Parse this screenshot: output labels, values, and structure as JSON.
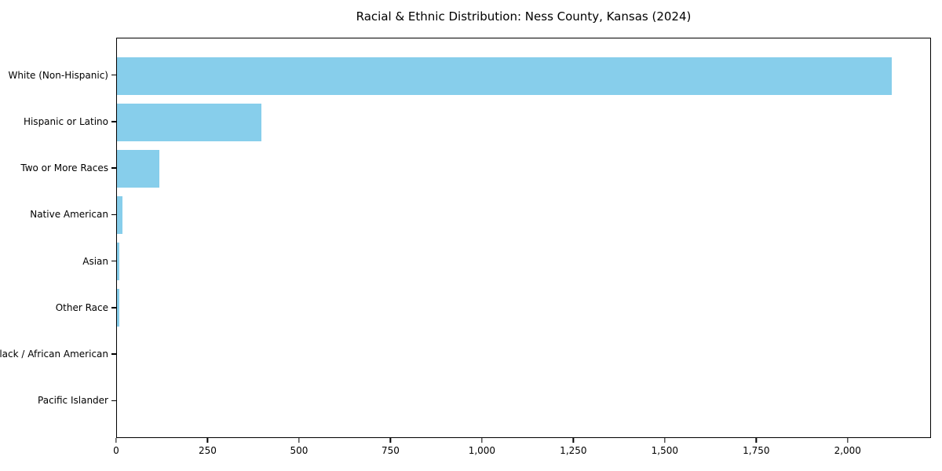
{
  "chart_data": {
    "type": "bar",
    "orientation": "horizontal",
    "title": "Racial & Ethnic Distribution: Ness County, Kansas (2024)",
    "categories": [
      "White (Non-Hispanic)",
      "Hispanic or Latino",
      "Two or More Races",
      "Native American",
      "Asian",
      "Other Race",
      "Black / African American",
      "Pacific Islander"
    ],
    "values": [
      2122,
      395,
      116,
      16,
      7,
      6,
      0,
      0
    ],
    "xlabel": "",
    "ylabel": "",
    "xlim": [
      0,
      2228
    ],
    "xticks": [
      {
        "value": 0,
        "label": "0"
      },
      {
        "value": 250,
        "label": "250"
      },
      {
        "value": 500,
        "label": "500"
      },
      {
        "value": 750,
        "label": "750"
      },
      {
        "value": 1000,
        "label": "1,000"
      },
      {
        "value": 1250,
        "label": "1,250"
      },
      {
        "value": 1500,
        "label": "1,500"
      },
      {
        "value": 1750,
        "label": "1,750"
      },
      {
        "value": 2000,
        "label": "2,000"
      }
    ],
    "bar_color": "#87CEEB",
    "axis_color": "#000000",
    "background": "#FFFFFF",
    "grid": false,
    "legend": null
  }
}
